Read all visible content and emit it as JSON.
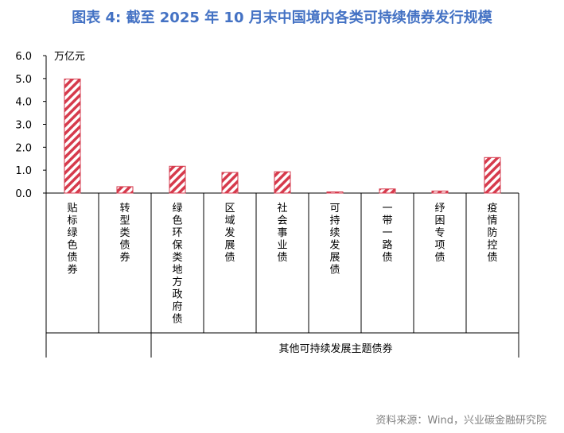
{
  "title": "图表 4:  截至 2025 年 10 月末中国境内各类可持续债券发行规模",
  "source": "资料来源：Wind，兴业碳金融研究院",
  "chart_data": {
    "type": "bar",
    "unit_label": "万亿元",
    "categories": [
      "贴标绿色债券",
      "转型类债券",
      "绿色环保类地方政府债",
      "区域发展债",
      "社会事业债",
      "可持续发展债",
      "一带一路债",
      "纾困专项债",
      "疫情防控债"
    ],
    "values": [
      4.98,
      0.28,
      1.17,
      0.9,
      0.93,
      0.05,
      0.18,
      0.09,
      1.55
    ],
    "ylim": [
      0,
      6
    ],
    "yticks": [
      "0.0",
      "1.0",
      "2.0",
      "3.0",
      "4.0",
      "5.0",
      "6.0"
    ],
    "group_label": "其他可持续发展主题债券",
    "bar_color": "#D63A4C",
    "bar_pattern": "diagonal-stripes"
  }
}
